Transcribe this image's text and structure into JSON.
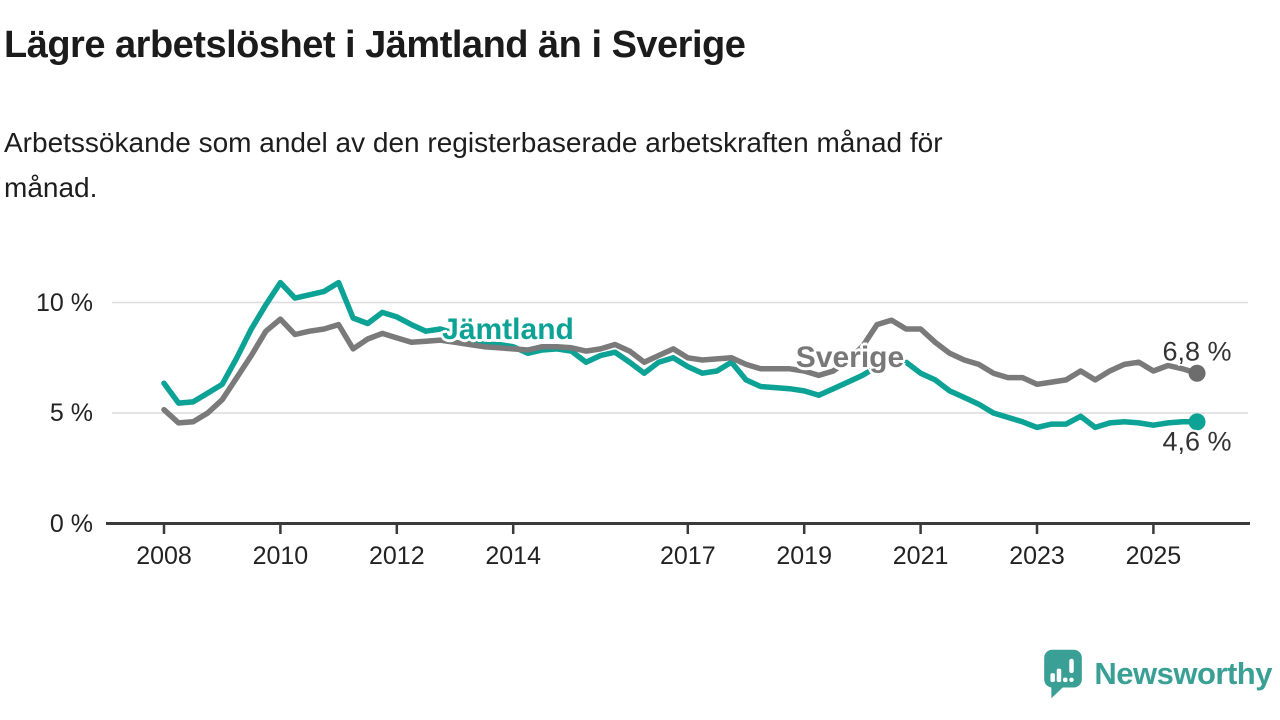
{
  "header": {
    "title": "Lägre arbetslöshet i Jämtland än i Sverige",
    "subtitle": "Arbetssökande som andel av den registerbaserade arbetskraften månad för månad.",
    "subtitle_lines": [
      "Arbetssökande som andel av den registerbaserade arbetskraften månad för",
      "månad."
    ]
  },
  "colors": {
    "jamtland_teal": "#0ca295",
    "sverige_gray": "#7a7a7a",
    "sverige_dot": "#6d6d6d",
    "brand_teal": "#3aa096",
    "axis_dark": "#3a3a3a",
    "gridline": "#dcdcdc",
    "text_dark": "#1b1b1b",
    "value_label": "#333333"
  },
  "chart_data": {
    "type": "line",
    "title": "Lägre arbetslöshet i Jämtland än i Sverige",
    "xlabel": "",
    "ylabel": "",
    "grid": "horizontal",
    "legend_position": "inline-labels",
    "xlim": [
      2007.9,
      2026.3
    ],
    "ylim": [
      0,
      11.5
    ],
    "yticks": [
      {
        "label": "10 %",
        "value": 10
      },
      {
        "label": "5 %",
        "value": 5
      },
      {
        "label": "0 %",
        "value": 0
      }
    ],
    "xticks": [
      {
        "label": "2008",
        "year": 2008
      },
      {
        "label": "2010",
        "year": 2010
      },
      {
        "label": "2012",
        "year": 2012
      },
      {
        "label": "2014",
        "year": 2014
      },
      {
        "label": "2017",
        "year": 2017
      },
      {
        "label": "2019",
        "year": 2019
      },
      {
        "label": "2021",
        "year": 2021
      },
      {
        "label": "2023",
        "year": 2023
      },
      {
        "label": "2025",
        "year": 2025
      }
    ],
    "x": [
      2008,
      2008.25,
      2008.5,
      2008.75,
      2009,
      2009.25,
      2009.5,
      2009.75,
      2010,
      2010.25,
      2010.5,
      2010.75,
      2011,
      2011.25,
      2011.5,
      2011.75,
      2012,
      2012.25,
      2012.5,
      2012.75,
      2013,
      2013.25,
      2013.5,
      2013.75,
      2014,
      2014.25,
      2014.5,
      2014.75,
      2015,
      2015.25,
      2015.5,
      2015.75,
      2016,
      2016.25,
      2016.5,
      2016.75,
      2017,
      2017.25,
      2017.5,
      2017.75,
      2018,
      2018.25,
      2018.5,
      2018.75,
      2019,
      2019.25,
      2019.5,
      2019.75,
      2020,
      2020.25,
      2020.5,
      2020.75,
      2021,
      2021.25,
      2021.5,
      2021.75,
      2022,
      2022.25,
      2022.5,
      2022.75,
      2023,
      2023.25,
      2023.5,
      2023.75,
      2024,
      2024.25,
      2024.5,
      2024.75,
      2025,
      2025.25,
      2025.5,
      2025.75
    ],
    "series": [
      {
        "name": "Jämtland",
        "color": "#0ca295",
        "end_label": "4,6 %",
        "end_value": 4.6,
        "values": [
          6.35,
          5.45,
          5.5,
          5.9,
          6.3,
          7.5,
          8.8,
          9.9,
          10.9,
          10.2,
          10.35,
          10.5,
          10.9,
          9.3,
          9.05,
          9.55,
          9.35,
          9.0,
          8.7,
          8.8,
          8.6,
          8.3,
          8.1,
          8.1,
          8.0,
          7.7,
          7.85,
          7.9,
          7.8,
          7.3,
          7.6,
          7.75,
          7.3,
          6.8,
          7.3,
          7.5,
          7.1,
          6.8,
          6.9,
          7.3,
          6.5,
          6.2,
          6.15,
          6.1,
          6.0,
          5.8,
          6.1,
          6.4,
          6.7,
          7.1,
          7.5,
          7.3,
          6.8,
          6.5,
          6.0,
          5.7,
          5.4,
          5.0,
          4.8,
          4.6,
          4.35,
          4.5,
          4.5,
          4.85,
          4.35,
          4.55,
          4.6,
          4.55,
          4.45,
          4.55,
          4.6,
          4.6
        ]
      },
      {
        "name": "Sverige",
        "color": "#7a7a7a",
        "end_label": "6,8 %",
        "end_value": 6.8,
        "values": [
          5.15,
          4.55,
          4.6,
          5.0,
          5.6,
          6.6,
          7.6,
          8.7,
          9.25,
          8.55,
          8.7,
          8.8,
          9.0,
          7.9,
          8.35,
          8.6,
          8.4,
          8.2,
          8.25,
          8.3,
          8.2,
          8.1,
          8.0,
          7.95,
          7.9,
          7.85,
          8.0,
          8.0,
          7.95,
          7.8,
          7.9,
          8.1,
          7.8,
          7.3,
          7.6,
          7.9,
          7.5,
          7.4,
          7.45,
          7.5,
          7.2,
          7.0,
          7.0,
          7.0,
          6.9,
          6.7,
          6.9,
          7.4,
          8.0,
          9.0,
          9.2,
          8.8,
          8.8,
          8.2,
          7.7,
          7.4,
          7.2,
          6.8,
          6.6,
          6.6,
          6.3,
          6.4,
          6.5,
          6.9,
          6.5,
          6.9,
          7.2,
          7.3,
          6.9,
          7.15,
          7.0,
          6.8
        ]
      }
    ]
  },
  "footer": {
    "brand": "Newsworthy"
  }
}
